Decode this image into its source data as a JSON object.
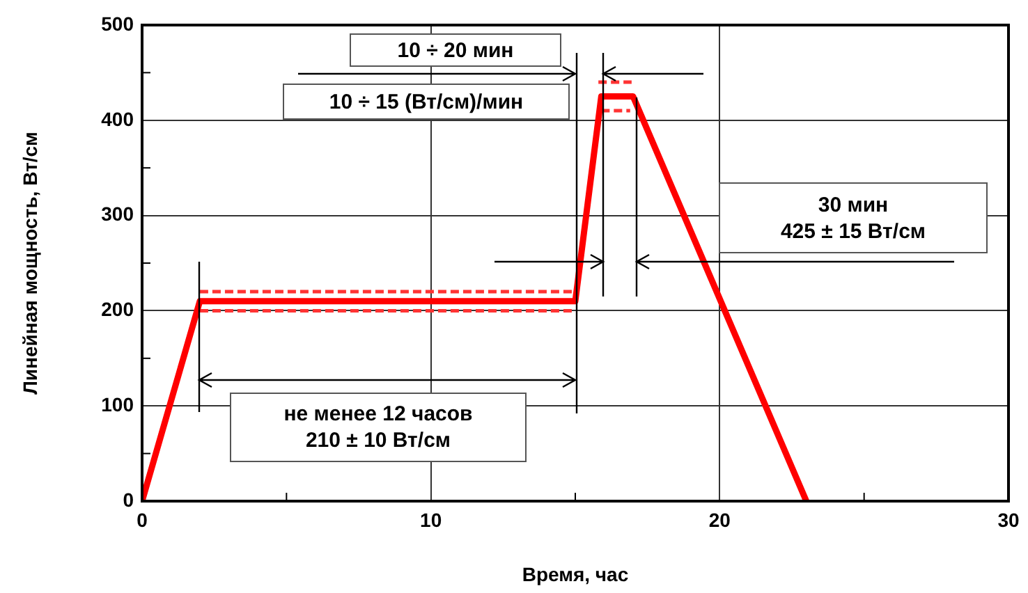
{
  "chart_data": {
    "type": "line",
    "xlabel": "Время, час",
    "ylabel": "Линейная мощность, Вт/см",
    "xlim": [
      0,
      30
    ],
    "ylim": [
      0,
      500
    ],
    "xticks": [
      0,
      {
        "value": 5,
        "label": null
      },
      10,
      {
        "value": 15,
        "label": null
      },
      20,
      {
        "value": 25,
        "label": null
      },
      30
    ],
    "yticks": [
      0,
      {
        "value": 50,
        "label": null
      },
      100,
      {
        "value": 150,
        "label": null
      },
      200,
      {
        "value": 250,
        "label": null
      },
      300,
      {
        "value": 350,
        "label": null
      },
      400,
      {
        "value": 450,
        "label": null
      },
      500
    ],
    "grid": true,
    "legend": false,
    "marker": "none",
    "annotations": [
      "10 ÷ 20 мин",
      "10 ÷ 15 (Вт/см)/мин",
      "30 мин\n425 ± 15 Вт/см",
      "не менее 12 часов\n210 ± 10 Вт/см"
    ],
    "series": [
      {
        "color": "#ff0000",
        "x": [
          0,
          2,
          15,
          15.9,
          17,
          23
        ],
        "values": [
          0,
          210,
          210,
          425,
          425,
          0
        ],
        "line_style": "solid"
      },
      {
        "color": "#ff3333",
        "x": [
          2,
          15
        ],
        "values": [
          220,
          220
        ],
        "line_style": "dashed"
      },
      {
        "color": "#ff3333",
        "x": [
          2,
          15
        ],
        "values": [
          200,
          200
        ],
        "line_style": "dashed"
      },
      {
        "color": "#ff3333",
        "x": [
          15.8,
          16.95
        ],
        "values": [
          440,
          440
        ],
        "line_style": "dashed"
      },
      {
        "color": "#ff3333",
        "x": [
          15.9,
          16.9
        ],
        "values": [
          410,
          410
        ],
        "line_style": "dashed"
      }
    ]
  }
}
